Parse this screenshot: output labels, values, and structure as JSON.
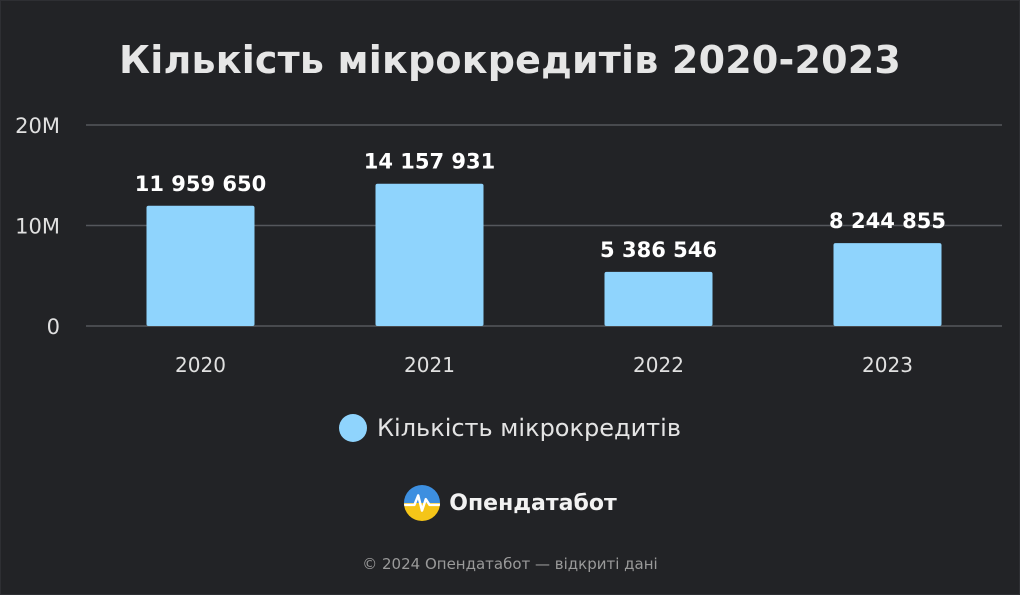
{
  "chart_data": {
    "type": "bar",
    "title": "Кількість мікрокредитів 2020-2023",
    "categories": [
      "2020",
      "2021",
      "2022",
      "2023"
    ],
    "series": [
      {
        "name": "Кількість мікрокредитів",
        "values": [
          11959650,
          14157931,
          5386546,
          8244855
        ],
        "data_labels": [
          "11 959 650",
          "14 157 931",
          "5 386 546",
          "8 244 855"
        ]
      }
    ],
    "y_ticks": [
      {
        "value": 0,
        "label": "0"
      },
      {
        "value": 10000000,
        "label": "10M"
      },
      {
        "value": 20000000,
        "label": "20M"
      }
    ],
    "ylim": [
      0,
      20000000
    ],
    "grid": true,
    "legend_position": "bottom",
    "colors": {
      "bar": "#8fd4fd",
      "grid": "#55575c",
      "background": "#222326"
    }
  },
  "brand": {
    "name": "Опендатабот",
    "logo_icon": "opendatabot-logo-icon"
  },
  "footer": {
    "text": "© 2024 Опендатабот — відкриті дані"
  }
}
